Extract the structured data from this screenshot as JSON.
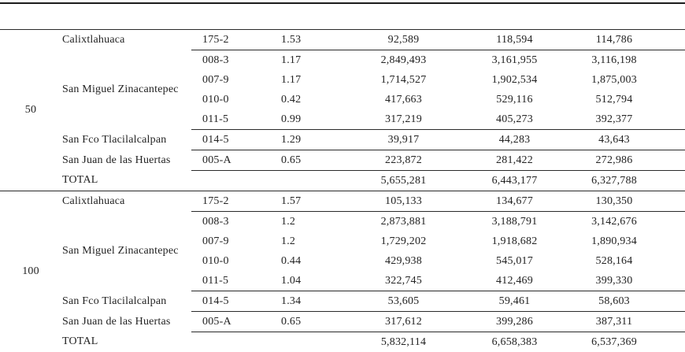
{
  "page": {
    "background_color": "#ffffff",
    "text_color": "#232323",
    "rule_color": "#2a2a2a"
  },
  "table": {
    "header_band_text": "",
    "sections": [
      {
        "group": "50",
        "rows": [
          {
            "locality": "Calixtlahuaca",
            "locality_span": 1,
            "code": "175-2",
            "rate": "1.53",
            "v1": "92,589",
            "v2": "118,594",
            "v3": "114,786",
            "line_below": true
          },
          {
            "locality": "San Miguel Zinacantepec",
            "locality_span": 4,
            "code": "008-3",
            "rate": "1.17",
            "v1": "2,849,493",
            "v2": "3,161,955",
            "v3": "3,116,198"
          },
          {
            "code": "007-9",
            "rate": "1.17",
            "v1": "1,714,527",
            "v2": "1,902,534",
            "v3": "1,875,003"
          },
          {
            "code": "010-0",
            "rate": "0.42",
            "v1": "417,663",
            "v2": "529,116",
            "v3": "512,794"
          },
          {
            "code": "011-5",
            "rate": "0.99",
            "v1": "317,219",
            "v2": "405,273",
            "v3": "392,377",
            "line_below": true
          },
          {
            "locality": "San Fco Tlacilalcalpan",
            "locality_span": 1,
            "code": "014-5",
            "rate": "1.29",
            "v1": "39,917",
            "v2": "44,283",
            "v3": "43,643",
            "line_below": true
          },
          {
            "locality": "San Juan de las Huertas",
            "locality_span": 1,
            "code": "005-A",
            "rate": "0.65",
            "v1": "223,872",
            "v2": "281,422",
            "v3": "272,986",
            "line_below": true
          },
          {
            "locality": "TOTAL",
            "locality_span": 1,
            "total": true,
            "code": "",
            "rate": "",
            "v1": "5,655,281",
            "v2": "6,443,177",
            "v3": "6,327,788"
          }
        ]
      },
      {
        "group": "100",
        "rows": [
          {
            "locality": "Calixtlahuaca",
            "locality_span": 1,
            "code": "175-2",
            "rate": "1.57",
            "v1": "105,133",
            "v2": "134,677",
            "v3": "130,350",
            "line_below": true
          },
          {
            "locality": "San Miguel Zinacantepec",
            "locality_span": 4,
            "code": "008-3",
            "rate": "1.2",
            "v1": "2,873,881",
            "v2": "3,188,791",
            "v3": "3,142,676"
          },
          {
            "code": "007-9",
            "rate": "1.2",
            "v1": "1,729,202",
            "v2": "1,918,682",
            "v3": "1,890,934"
          },
          {
            "code": "010-0",
            "rate": "0.44",
            "v1": "429,938",
            "v2": "545,017",
            "v3": "528,164"
          },
          {
            "code": "011-5",
            "rate": "1.04",
            "v1": "322,745",
            "v2": "412,469",
            "v3": "399,330",
            "line_below": true
          },
          {
            "locality": "San Fco Tlacilalcalpan",
            "locality_span": 1,
            "code": "014-5",
            "rate": "1.34",
            "v1": "53,605",
            "v2": "59,461",
            "v3": "58,603",
            "line_below": true
          },
          {
            "locality": "San Juan de las Huertas",
            "locality_span": 1,
            "code": "005-A",
            "rate": "0.65",
            "v1": "317,612",
            "v2": "399,286",
            "v3": "387,311",
            "line_below": true
          },
          {
            "locality": "TOTAL",
            "locality_span": 1,
            "total": true,
            "code": "",
            "rate": "",
            "v1": "5,832,114",
            "v2": "6,658,383",
            "v3": "6,537,369"
          }
        ]
      }
    ]
  }
}
